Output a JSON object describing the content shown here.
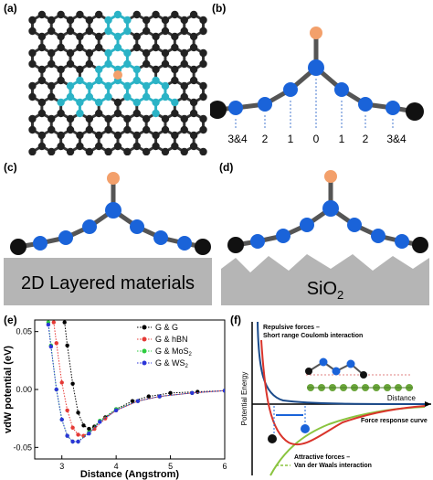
{
  "panels": {
    "a": "(a)",
    "b": "(b)",
    "c": "(c)",
    "d": "(d)",
    "e": "(e)",
    "f": "(f)"
  },
  "panel_b": {
    "positions": [
      "3&4",
      "2",
      "1",
      "0",
      "1",
      "2",
      "3&4"
    ]
  },
  "panel_c": {
    "substrate_label": "2D Layered materials"
  },
  "panel_d": {
    "substrate_label": "SiO",
    "substrate_subscript": "2"
  },
  "colors": {
    "carbon_black": "#111111",
    "carbon_cyan": "#2bb3c6",
    "chain_blue": "#1a63d9",
    "adatom_orange": "#f3a06b",
    "substrate_gray": "#b5b5b5"
  },
  "chart_data": [
    {
      "type": "line",
      "title": "",
      "xlabel": "Distance (Angstrom)",
      "ylabel": "vdW potential (eV)",
      "xlim": [
        2.5,
        6
      ],
      "ylim": [
        -0.06,
        0.06
      ],
      "x_ticks": [
        "3",
        "4",
        "5",
        "6"
      ],
      "y_ticks": [
        "0.05",
        "0.00",
        "-0.05"
      ],
      "legend_position": "top-right",
      "series": [
        {
          "name": "G & G",
          "color": "#000000",
          "x": [
            3.05,
            3.1,
            3.2,
            3.3,
            3.4,
            3.5,
            3.6,
            3.8,
            4.0,
            4.3,
            4.6,
            5.0,
            5.5,
            6.0
          ],
          "y": [
            0.058,
            0.038,
            0.005,
            -0.02,
            -0.031,
            -0.034,
            -0.032,
            -0.024,
            -0.017,
            -0.01,
            -0.006,
            -0.003,
            -0.002,
            -0.001
          ]
        },
        {
          "name": "G & hBN",
          "color": "#e53935",
          "x": [
            2.85,
            2.9,
            3.0,
            3.1,
            3.2,
            3.3,
            3.4,
            3.6,
            3.8,
            4.0,
            4.4,
            4.8,
            5.4,
            6.0
          ],
          "y": [
            0.058,
            0.04,
            0.006,
            -0.018,
            -0.033,
            -0.039,
            -0.04,
            -0.034,
            -0.025,
            -0.018,
            -0.01,
            -0.006,
            -0.003,
            -0.001
          ]
        },
        {
          "name": "G & MoS2",
          "color": "#2ecc40",
          "x": [
            2.75,
            2.8,
            2.9,
            3.0,
            3.1,
            3.2,
            3.3,
            3.5,
            3.7,
            4.0,
            4.4,
            4.8,
            5.4,
            6.0
          ],
          "y": [
            0.058,
            0.038,
            0.0,
            -0.026,
            -0.04,
            -0.045,
            -0.045,
            -0.037,
            -0.027,
            -0.017,
            -0.01,
            -0.006,
            -0.003,
            -0.001
          ]
        },
        {
          "name": "G & WS2",
          "color": "#2b35d8",
          "x": [
            2.75,
            2.8,
            2.9,
            3.0,
            3.1,
            3.2,
            3.3,
            3.5,
            3.7,
            4.0,
            4.4,
            4.8,
            5.4,
            6.0
          ],
          "y": [
            0.056,
            0.037,
            0.0,
            -0.026,
            -0.04,
            -0.045,
            -0.045,
            -0.038,
            -0.028,
            -0.018,
            -0.01,
            -0.006,
            -0.003,
            -0.001
          ]
        }
      ]
    },
    {
      "type": "line",
      "title": "",
      "xlabel": "Distance",
      "ylabel": "Potential Energy",
      "annotations": {
        "repulsive_line1": "Repulsive forces –",
        "repulsive_line2": "Short range Coulomb interaction",
        "response": "Force response curve",
        "attractive_line1": "Attractive forces –",
        "attractive_line2": "Van der Waals interaction"
      },
      "series": [
        {
          "name": "Repulsive forces",
          "color": "#1a4a8a"
        },
        {
          "name": "Attractive forces",
          "color": "#8ac43f"
        },
        {
          "name": "Force response curve",
          "color": "#d9342b"
        }
      ]
    }
  ]
}
